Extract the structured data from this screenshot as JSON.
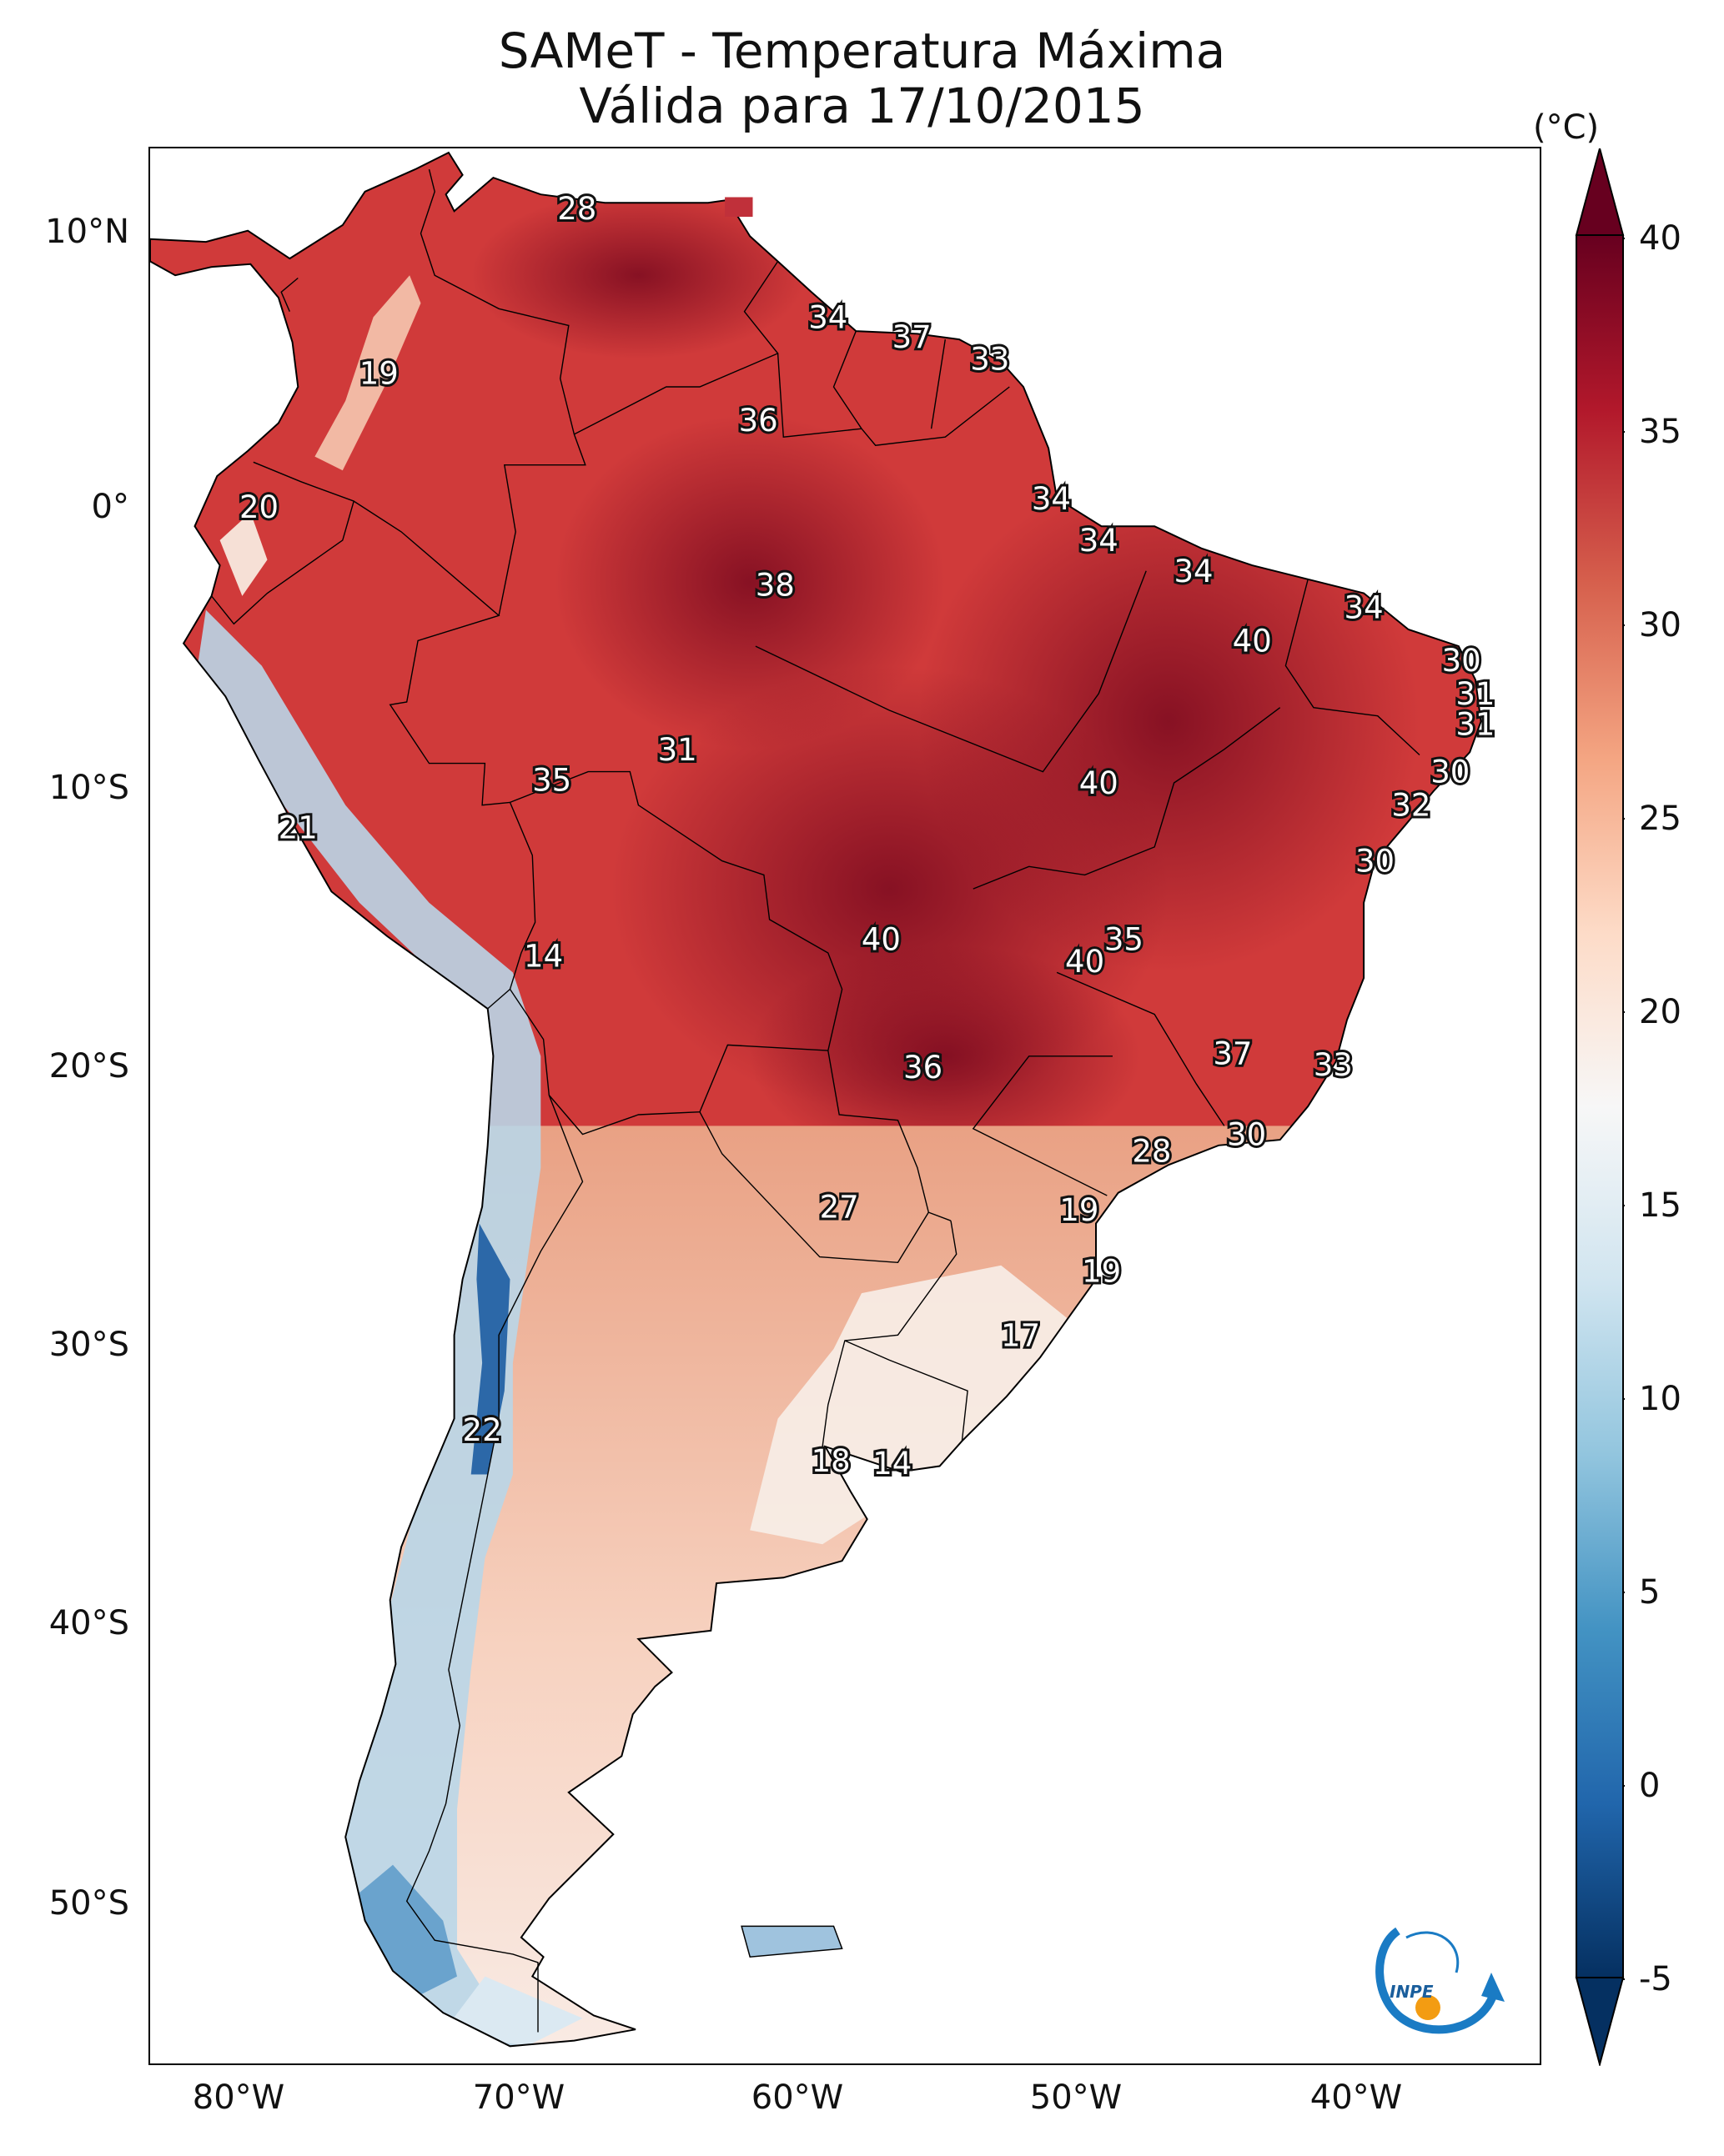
{
  "header": {
    "title_line1": "SAMeT - Temperatura Máxima",
    "title_line2": "Válida para 17/10/2015"
  },
  "axes": {
    "lat_labels": [
      "10°N",
      "0°",
      "10°S",
      "20°S",
      "30°S",
      "40°S",
      "50°S"
    ],
    "lon_labels": [
      "80°W",
      "70°W",
      "60°W",
      "50°W",
      "40°W"
    ]
  },
  "colorbar": {
    "units": "(°C)",
    "min": -5,
    "max": 40,
    "ticks": [
      "40",
      "35",
      "30",
      "25",
      "20",
      "15",
      "10",
      "5",
      "0",
      "-5"
    ],
    "colors": [
      "#053061",
      "#2166ac",
      "#4393c3",
      "#92c5de",
      "#d1e5f0",
      "#f7f7f7",
      "#fddbc7",
      "#f4a582",
      "#d6604d",
      "#b2182b",
      "#67001f"
    ]
  },
  "map": {
    "land_fill": "#d03a3a",
    "cool_fill": "#f7eee8",
    "temperature_labels": [
      {
        "value": "28",
        "lon": -67.2,
        "lat": 10.4
      },
      {
        "value": "19",
        "lon": -74.3,
        "lat": 4.5
      },
      {
        "value": "34",
        "lon": -58.2,
        "lat": 6.5
      },
      {
        "value": "37",
        "lon": -55.2,
        "lat": 5.8
      },
      {
        "value": "33",
        "lon": -52.4,
        "lat": 5.0
      },
      {
        "value": "36",
        "lon": -60.7,
        "lat": 2.8
      },
      {
        "value": "20",
        "lon": -78.6,
        "lat": -0.3
      },
      {
        "value": "34",
        "lon": -50.2,
        "lat": 0.0
      },
      {
        "value": "34",
        "lon": -48.5,
        "lat": -1.5
      },
      {
        "value": "34",
        "lon": -45.1,
        "lat": -2.6
      },
      {
        "value": "38",
        "lon": -60.1,
        "lat": -3.1
      },
      {
        "value": "34",
        "lon": -39.0,
        "lat": -3.9
      },
      {
        "value": "40",
        "lon": -43.0,
        "lat": -5.1
      },
      {
        "value": "30",
        "lon": -35.5,
        "lat": -5.8
      },
      {
        "value": "31",
        "lon": -35.0,
        "lat": -7.0
      },
      {
        "value": "31",
        "lon": -35.0,
        "lat": -8.1
      },
      {
        "value": "31",
        "lon": -63.6,
        "lat": -9.0
      },
      {
        "value": "35",
        "lon": -68.1,
        "lat": -10.1
      },
      {
        "value": "40",
        "lon": -48.5,
        "lat": -10.2
      },
      {
        "value": "30",
        "lon": -35.9,
        "lat": -9.8
      },
      {
        "value": "32",
        "lon": -37.3,
        "lat": -11.0
      },
      {
        "value": "21",
        "lon": -77.2,
        "lat": -11.8
      },
      {
        "value": "30",
        "lon": -38.6,
        "lat": -13.0
      },
      {
        "value": "14",
        "lon": -68.4,
        "lat": -16.4
      },
      {
        "value": "40",
        "lon": -56.3,
        "lat": -15.8
      },
      {
        "value": "35",
        "lon": -47.6,
        "lat": -15.8
      },
      {
        "value": "40",
        "lon": -49.0,
        "lat": -16.6
      },
      {
        "value": "36",
        "lon": -54.8,
        "lat": -20.4
      },
      {
        "value": "37",
        "lon": -43.7,
        "lat": -19.9
      },
      {
        "value": "33",
        "lon": -40.1,
        "lat": -20.3
      },
      {
        "value": "30",
        "lon": -43.2,
        "lat": -22.8
      },
      {
        "value": "28",
        "lon": -46.6,
        "lat": -23.4
      },
      {
        "value": "27",
        "lon": -57.8,
        "lat": -25.4
      },
      {
        "value": "19",
        "lon": -49.2,
        "lat": -25.5
      },
      {
        "value": "19",
        "lon": -48.4,
        "lat": -27.7
      },
      {
        "value": "17",
        "lon": -51.3,
        "lat": -30.0
      },
      {
        "value": "22",
        "lon": -70.6,
        "lat": -33.4
      },
      {
        "value": "18",
        "lon": -58.1,
        "lat": -34.5
      },
      {
        "value": "14",
        "lon": -55.9,
        "lat": -34.6
      }
    ]
  },
  "logo": {
    "text": "INPE",
    "accent": "#1a7bc4",
    "dot": "#f39c12"
  }
}
